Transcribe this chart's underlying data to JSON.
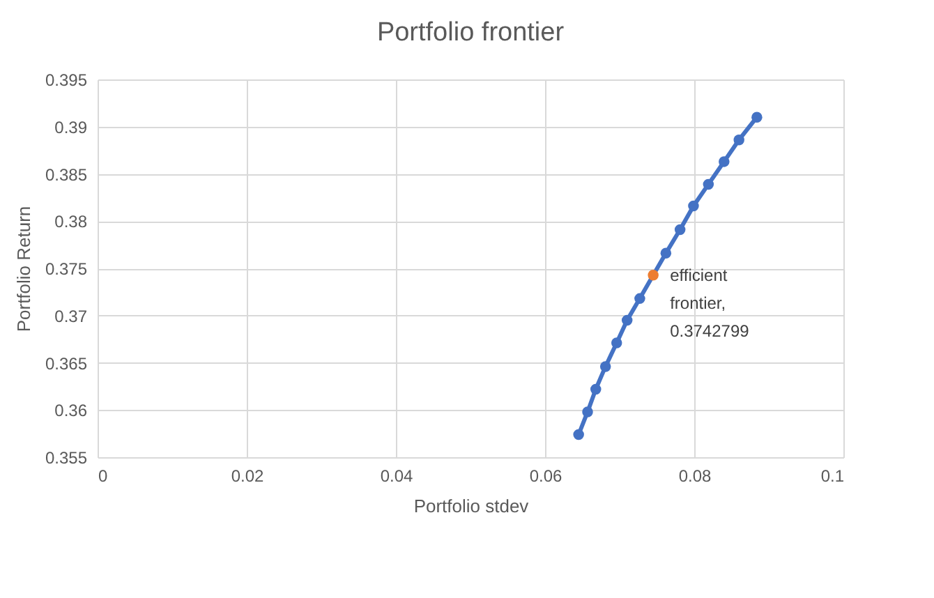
{
  "chart_data": {
    "type": "scatter",
    "title": "Portfolio frontier",
    "xlabel": "Portfolio stdev",
    "ylabel": "Portfolio Return",
    "series": [
      {
        "type": "line",
        "color": "#4472c4",
        "marker": "circle",
        "x": [
          0.0645,
          0.0657,
          0.0668,
          0.0681,
          0.0696,
          0.071,
          0.0727,
          0.0762,
          0.0781,
          0.0799,
          0.0819,
          0.084,
          0.086,
          0.0884
        ],
        "values": [
          0.3574,
          0.3598,
          0.3622,
          0.3646,
          0.3671,
          0.3695,
          0.3718,
          0.3766,
          0.3791,
          0.3816,
          0.3839,
          0.3863,
          0.3886,
          0.391
        ]
      },
      {
        "type": "scatter",
        "color": "#ed7d31",
        "marker": "circle",
        "x": [
          0.0745
        ],
        "values": [
          0.3742799
        ]
      }
    ],
    "annotations": [
      {
        "text": "efficient frontier, 0.3742799",
        "x": 0.0745,
        "y": 0.3742799
      }
    ],
    "xlim": [
      0,
      0.1
    ],
    "xticks": [
      0,
      0.02,
      0.04,
      0.06,
      0.08,
      0.1
    ],
    "ylim": [
      0.355,
      0.395
    ],
    "yticks": [
      0.355,
      0.36,
      0.365,
      0.37,
      0.375,
      0.38,
      0.385,
      0.39,
      0.395
    ],
    "grid": true
  }
}
